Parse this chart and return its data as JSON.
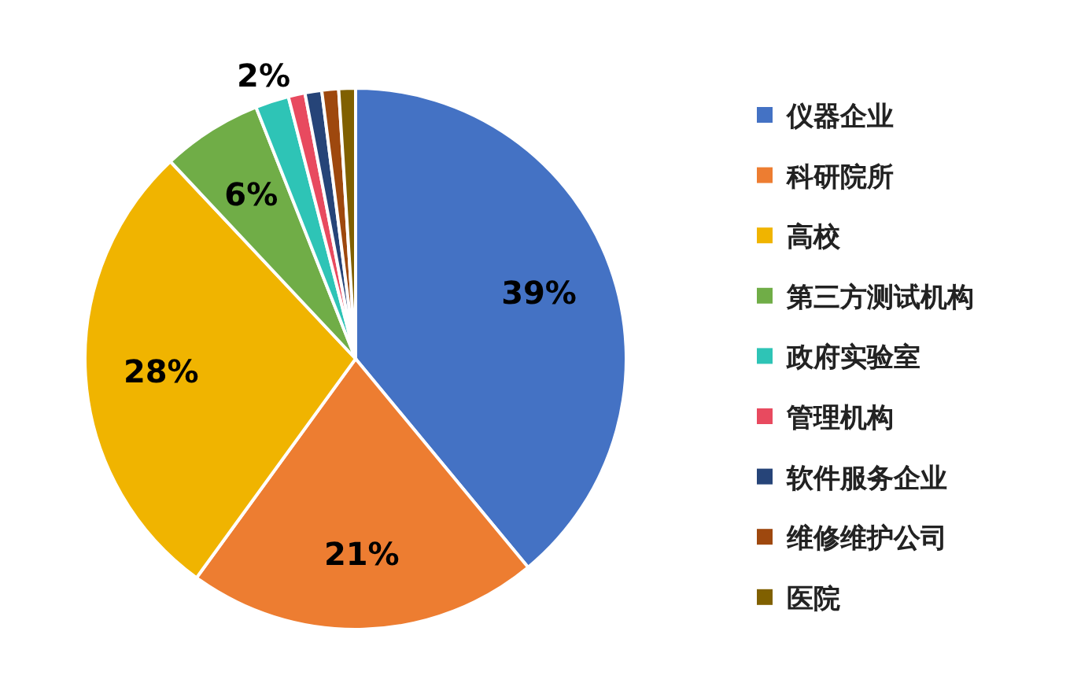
{
  "chart_data": {
    "type": "pie",
    "categories": [
      "仪器企业",
      "科研院所",
      "高校",
      "第三方测试机构",
      "政府实验室",
      "管理机构",
      "软件服务企业",
      "维修维护公司",
      "医院"
    ],
    "values": [
      39,
      21,
      28,
      6,
      2,
      1,
      1,
      1,
      1
    ],
    "value_labels": [
      "39%",
      "21%",
      "28%",
      "6%",
      "2%",
      null,
      null,
      null,
      null
    ],
    "colors": [
      "#4472c4",
      "#ed7d31",
      "#f0b400",
      "#70ad47",
      "#2ec4b6",
      "#e84a5f",
      "#264478",
      "#9e480e",
      "#806000"
    ],
    "legend": "right"
  }
}
